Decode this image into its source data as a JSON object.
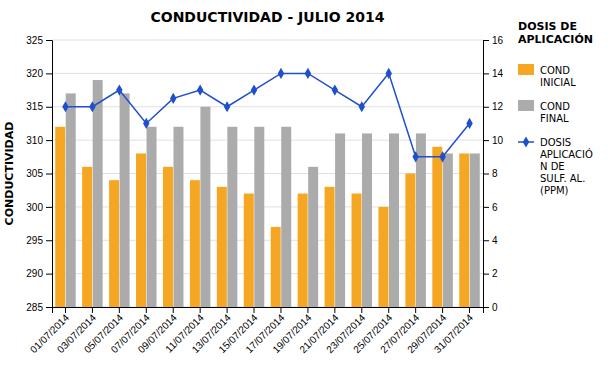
{
  "chart_data": {
    "type": "bar",
    "title": "CONDUCTIVIDAD - JULIO 2014",
    "y_label": "CONDUCTIVIDAD",
    "y2_label": "DOSIS DE\nAPLICACIÓN",
    "categories": [
      "01/07/2014",
      "03/07/2014",
      "05/07/2014",
      "07/07/2014",
      "09/07/2014",
      "11/07/2014",
      "13/07/2014",
      "15/07/2014",
      "17/07/2014",
      "19/07/2014",
      "21/07/2014",
      "23/07/2014",
      "25/07/2014",
      "27/07/2014",
      "29/07/2014",
      "31/07/2014"
    ],
    "series": [
      {
        "name": "COND\nINICIAL",
        "color": "#F5A623",
        "values": [
          312,
          306,
          304,
          308,
          306,
          304,
          303,
          302,
          297,
          302,
          303,
          302,
          300,
          305,
          309,
          308
        ]
      },
      {
        "name": "COND\nFINAL",
        "color": "#ABABAB",
        "values": [
          317,
          319,
          317,
          312,
          312,
          315,
          312,
          312,
          312,
          306,
          311,
          311,
          311,
          311,
          308,
          308
        ]
      },
      {
        "name": "DOSIS\nAPLICACIÓ\nN DE\nSULF. AL.\n(PPM)",
        "type": "line",
        "axis": "y2",
        "color": "#1F4FCC",
        "marker": "diamond",
        "values": [
          12,
          12,
          13,
          11,
          12.5,
          13,
          12,
          13,
          14,
          14,
          13,
          12,
          14,
          9,
          9,
          11
        ]
      }
    ],
    "ylim": [
      285,
      325
    ],
    "yticks": [
      285,
      290,
      295,
      300,
      305,
      310,
      315,
      320,
      325
    ],
    "y2lim": [
      0,
      16
    ],
    "y2ticks": [
      0,
      2,
      4,
      6,
      8,
      10,
      12,
      14,
      16
    ],
    "grid": true,
    "legend": "right"
  }
}
